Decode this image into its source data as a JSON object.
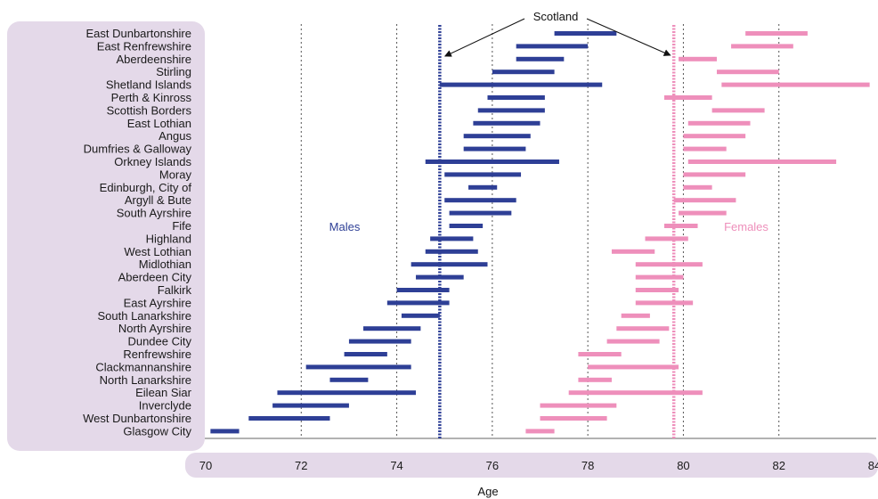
{
  "chart_data": {
    "type": "range-bar",
    "xlabel": "Age",
    "x_ticks": [
      70,
      72,
      74,
      76,
      78,
      80,
      82,
      84
    ],
    "xlim": [
      70,
      84
    ],
    "grid": "vertical dotted",
    "annotation": "Scotland",
    "scotland": {
      "males": 74.9,
      "females": 79.8
    },
    "series": [
      {
        "name": "Males",
        "color": "#2e3f96"
      },
      {
        "name": "Females",
        "color": "#ee8fbb"
      }
    ],
    "categories": [
      "East Dunbartonshire",
      "East Renfrewshire",
      "Aberdeenshire",
      "Stirling",
      "Shetland Islands",
      "Perth & Kinross",
      "Scottish Borders",
      "East Lothian",
      "Angus",
      "Dumfries & Galloway",
      "Orkney Islands",
      "Moray",
      "Edinburgh, City of",
      "Argyll & Bute",
      "South Ayrshire",
      "Fife",
      "Highland",
      "West Lothian",
      "Midlothian",
      "Aberdeen City",
      "Falkirk",
      "East Ayrshire",
      "South Lanarkshire",
      "North Ayrshire",
      "Dundee City",
      "Renfrewshire",
      "Clackmannanshire",
      "North Lanarkshire",
      "Eilean Siar",
      "Inverclyde",
      "West Dunbartonshire",
      "Glasgow City"
    ],
    "males": [
      [
        77.3,
        78.6
      ],
      [
        76.5,
        78.0
      ],
      [
        76.5,
        77.5
      ],
      [
        76.0,
        77.3
      ],
      [
        74.9,
        78.3
      ],
      [
        75.9,
        77.1
      ],
      [
        75.7,
        77.1
      ],
      [
        75.6,
        77.0
      ],
      [
        75.4,
        76.8
      ],
      [
        75.4,
        76.7
      ],
      [
        74.6,
        77.4
      ],
      [
        75.0,
        76.6
      ],
      [
        75.5,
        76.1
      ],
      [
        75.0,
        76.5
      ],
      [
        75.1,
        76.4
      ],
      [
        75.1,
        75.8
      ],
      [
        74.7,
        75.6
      ],
      [
        74.6,
        75.7
      ],
      [
        74.3,
        75.9
      ],
      [
        74.4,
        75.4
      ],
      [
        74.0,
        75.1
      ],
      [
        73.8,
        75.1
      ],
      [
        74.1,
        74.9
      ],
      [
        73.3,
        74.5
      ],
      [
        73.0,
        74.3
      ],
      [
        72.9,
        73.8
      ],
      [
        72.1,
        74.3
      ],
      [
        72.6,
        73.4
      ],
      [
        71.5,
        74.4
      ],
      [
        71.4,
        73.0
      ],
      [
        70.9,
        72.6
      ],
      [
        70.1,
        70.7
      ]
    ],
    "females": [
      [
        81.3,
        82.6
      ],
      [
        81.0,
        82.3
      ],
      [
        79.9,
        80.7
      ],
      [
        80.7,
        82.0
      ],
      [
        80.8,
        83.9
      ],
      [
        79.6,
        80.6
      ],
      [
        80.6,
        81.7
      ],
      [
        80.1,
        81.4
      ],
      [
        80.0,
        81.3
      ],
      [
        80.0,
        80.9
      ],
      [
        80.1,
        83.2
      ],
      [
        80.0,
        81.3
      ],
      [
        80.0,
        80.6
      ],
      [
        79.8,
        81.1
      ],
      [
        79.9,
        80.9
      ],
      [
        79.6,
        80.3
      ],
      [
        79.2,
        80.1
      ],
      [
        78.5,
        79.4
      ],
      [
        79.0,
        80.4
      ],
      [
        79.0,
        80.0
      ],
      [
        79.0,
        79.9
      ],
      [
        79.0,
        80.2
      ],
      [
        78.7,
        79.3
      ],
      [
        78.6,
        79.7
      ],
      [
        78.4,
        79.5
      ],
      [
        77.8,
        78.7
      ],
      [
        78.0,
        79.9
      ],
      [
        77.8,
        78.5
      ],
      [
        77.6,
        80.4
      ],
      [
        77.0,
        78.6
      ],
      [
        77.0,
        78.4
      ],
      [
        76.7,
        77.3
      ]
    ]
  }
}
